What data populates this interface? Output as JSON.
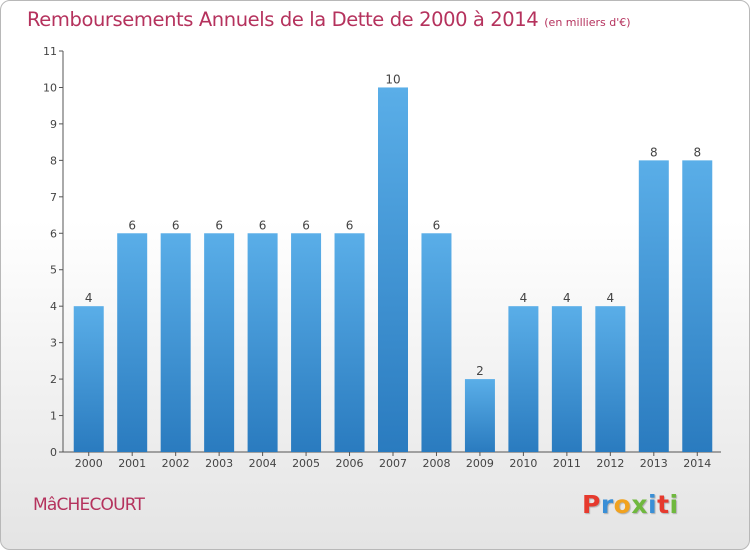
{
  "header": {
    "title": "Remboursements Annuels de la Dette de 2000 à 2014",
    "unit": "(en milliers d'€)"
  },
  "footer": {
    "commune": "MâCHECOURT",
    "brand": {
      "letters": [
        "P",
        "r",
        "o",
        "x",
        "i",
        "t",
        "i"
      ],
      "colors": [
        "#e63a2e",
        "#3a8fd6",
        "#f1a21f",
        "#6fb83e",
        "#3a8fd6",
        "#e63a2e",
        "#6fb83e"
      ]
    }
  },
  "chart_data": {
    "type": "bar",
    "title": "Remboursements Annuels de la Dette de 2000 à 2014",
    "xlabel": "",
    "ylabel": "",
    "categories": [
      "2000",
      "2001",
      "2002",
      "2003",
      "2004",
      "2005",
      "2006",
      "2007",
      "2008",
      "2009",
      "2010",
      "2011",
      "2012",
      "2013",
      "2014"
    ],
    "values": [
      4,
      6,
      6,
      6,
      6,
      6,
      6,
      10,
      6,
      2,
      4,
      4,
      4,
      8,
      8
    ],
    "ylim": [
      0,
      11
    ],
    "yticks": [
      0,
      1,
      2,
      3,
      4,
      5,
      6,
      7,
      8,
      9,
      10,
      11
    ],
    "grid": false,
    "legend": "none",
    "colors": {
      "bar_light": "#5aaee8",
      "bar_dark": "#2a7bbf",
      "axis": "#555555",
      "text": "#444444"
    }
  }
}
